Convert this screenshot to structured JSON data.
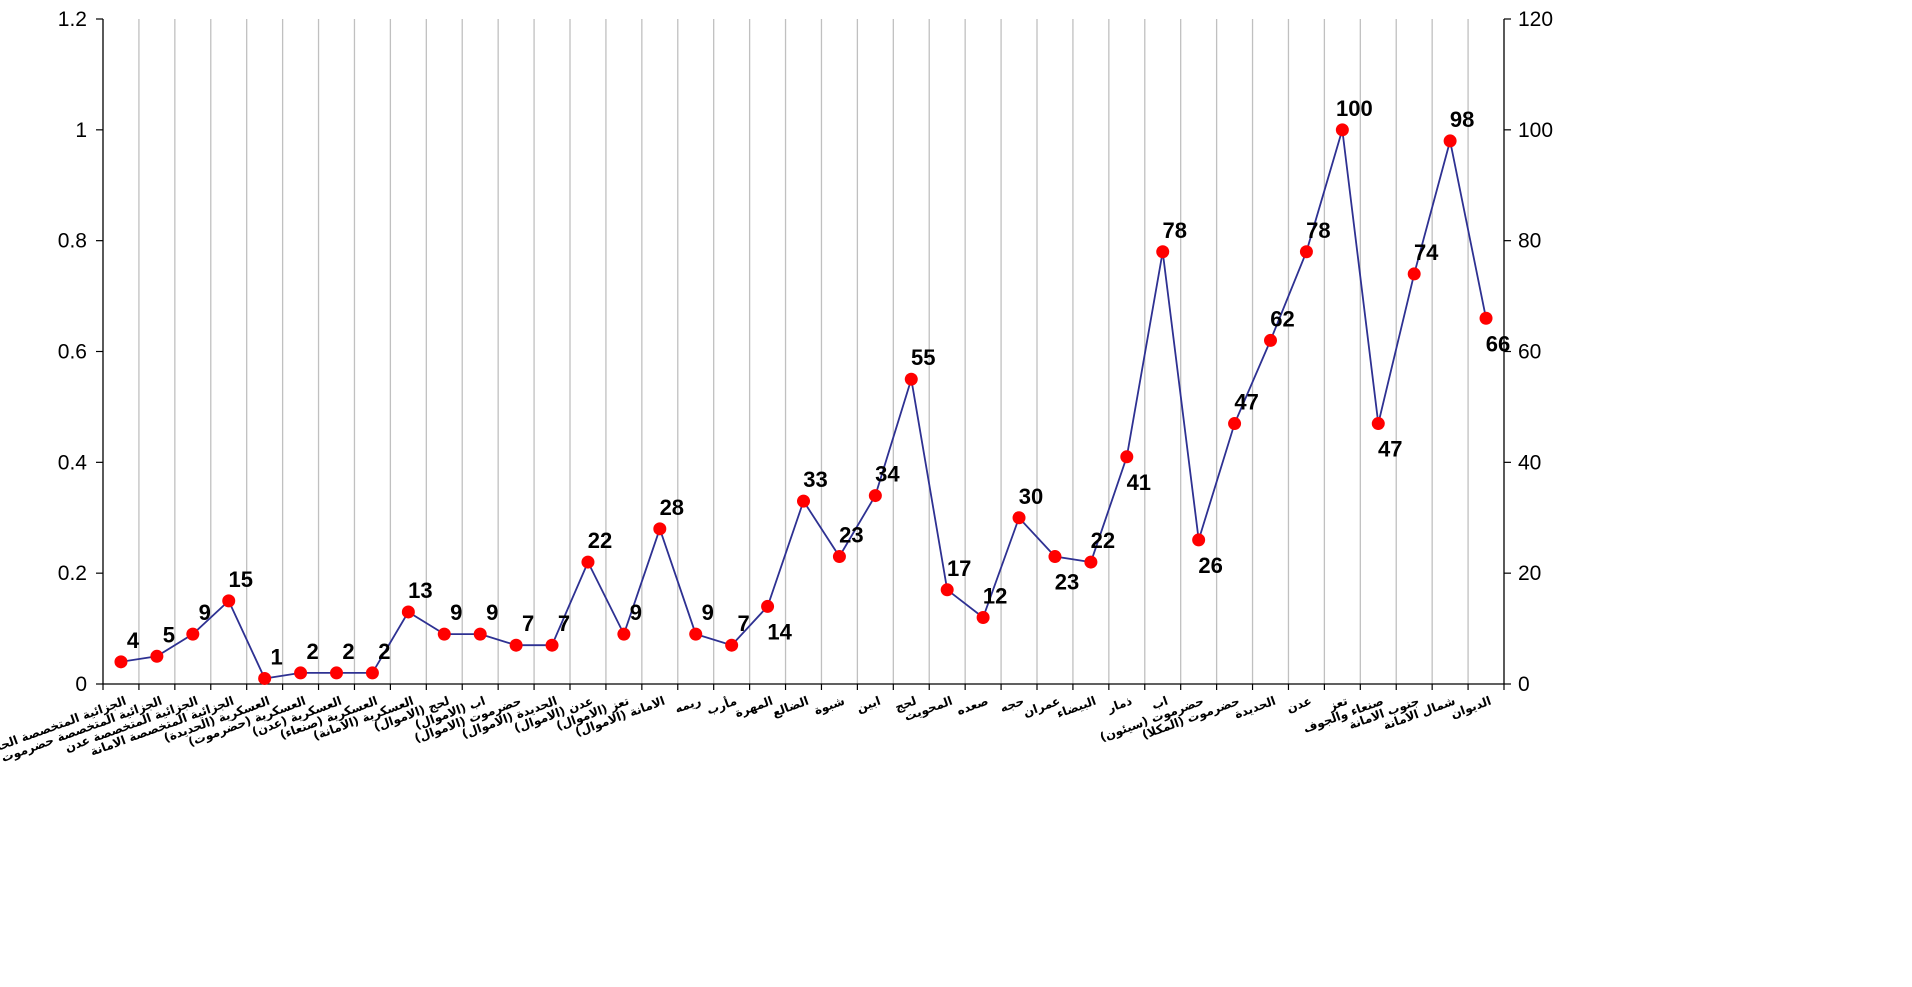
{
  "chart_data": {
    "type": "line",
    "categories": [
      "الجزائية المتخصصة الحديدة",
      "الجزائية المتخصصة حضرموت",
      "الجزائية المتخصصة عدن",
      "الجزائية المتخصصة الامانة",
      "العسكرية (الحديدة)",
      "العسكرية (حضرموت)",
      "العسكرية (عدن)",
      "العسكرية (صنعاء)",
      "العسكرية (الامانة)",
      "لحج (الاموال)",
      "اب (الاموال)",
      "حضرموت (الاموال)",
      "الحديدة (الاموال)",
      "عدن (الاموال)",
      "تعز (الاموال)",
      "الامانة (الاموال)",
      "ريمه",
      "مأرب",
      "المهرة",
      "الضالع",
      "شبوة",
      "ابين",
      "لحج",
      "المحويت",
      "صعده",
      "حجه",
      "عمران",
      "البيضاء",
      "ذمار",
      "اب",
      "حضرموت (سيئون)",
      "حضرموت (المكلا)",
      "الحديدة",
      "عدن",
      "تعز",
      "صنعاء والجوف",
      "جنوب الامانة",
      "شمال الامانة",
      "الديوان"
    ],
    "series": [
      {
        "values": [
          4,
          5,
          9,
          15,
          1,
          2,
          2,
          2,
          13,
          9,
          9,
          7,
          7,
          22,
          9,
          28,
          9,
          7,
          14,
          33,
          23,
          34,
          55,
          17,
          12,
          30,
          23,
          22,
          41,
          78,
          26,
          47,
          62,
          78,
          100,
          47,
          74,
          98,
          66
        ]
      }
    ],
    "label_position": [
      "above",
      "above",
      "above",
      "above",
      "above",
      "above",
      "above",
      "above",
      "above",
      "above",
      "above",
      "above",
      "above",
      "above",
      "above",
      "above",
      "above",
      "above",
      "below",
      "above",
      "above",
      "above",
      "above",
      "above",
      "above",
      "above",
      "below",
      "above",
      "below",
      "above",
      "below",
      "above",
      "above",
      "above",
      "above",
      "below",
      "above",
      "above",
      "below"
    ],
    "y_left": {
      "min": 0,
      "max": 1.2,
      "ticks": [
        "0",
        "0.2",
        "0.4",
        "0.6",
        "0.8",
        "1",
        "1.2"
      ]
    },
    "y_right": {
      "min": 0,
      "max": 120,
      "ticks": [
        "0",
        "20",
        "40",
        "60",
        "80",
        "100",
        "120"
      ]
    },
    "line_color": "#2e3192",
    "marker_color": "#ff0000",
    "grid_color": "#c0c0c0",
    "grid": "vertical",
    "legend": "none"
  }
}
